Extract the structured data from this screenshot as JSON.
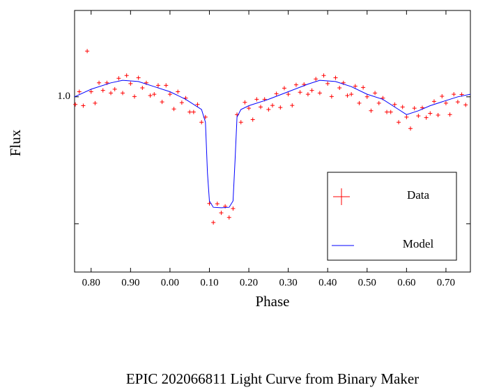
{
  "chart_data": {
    "type": "scatter",
    "caption": "EPIC 202066811 Light Curve from Binary Maker",
    "x_label": "Phase",
    "y_label": "Flux",
    "xlim": [
      0.758,
      1.762
    ],
    "ylim": [
      0.31,
      1.34
    ],
    "xticks": [
      {
        "value": 0.8,
        "label": "0.80"
      },
      {
        "value": 0.9,
        "label": "0.90"
      },
      {
        "value": 1.0,
        "label": "0.00"
      },
      {
        "value": 1.1,
        "label": "0.10"
      },
      {
        "value": 1.2,
        "label": "0.20"
      },
      {
        "value": 1.3,
        "label": "0.30"
      },
      {
        "value": 1.4,
        "label": "0.40"
      },
      {
        "value": 1.5,
        "label": "0.50"
      },
      {
        "value": 1.6,
        "label": "0.60"
      },
      {
        "value": 1.7,
        "label": "0.70"
      }
    ],
    "yticks": [
      {
        "value": 1.0,
        "label": "1.0"
      },
      {
        "value": 0.5,
        "label": null
      }
    ],
    "legend": "lower right",
    "series": [
      {
        "name": "Data",
        "color": "#ff0000",
        "style": "markers",
        "x": [
          0.76,
          0.77,
          0.78,
          0.79,
          0.8,
          0.81,
          0.82,
          0.83,
          0.84,
          0.85,
          0.86,
          0.87,
          0.88,
          0.89,
          0.9,
          0.91,
          0.92,
          0.93,
          0.94,
          0.95,
          0.96,
          0.97,
          0.98,
          0.99,
          1.0,
          1.01,
          1.02,
          1.03,
          1.04,
          1.05,
          1.06,
          1.07,
          1.08,
          1.09,
          1.1,
          1.11,
          1.12,
          1.13,
          1.14,
          1.15,
          1.16,
          1.17,
          1.18,
          1.19,
          1.2,
          1.21,
          1.22,
          1.23,
          1.24,
          1.25,
          1.26,
          1.27,
          1.28,
          1.29,
          1.3,
          1.31,
          1.32,
          1.33,
          1.34,
          1.35,
          1.36,
          1.37,
          1.38,
          1.39,
          1.4,
          1.41,
          1.42,
          1.43,
          1.44,
          1.45,
          1.46,
          1.47,
          1.48,
          1.49,
          1.5,
          1.51,
          1.52,
          1.53,
          1.54,
          1.55,
          1.56,
          1.57,
          1.58,
          1.59,
          1.6,
          1.61,
          1.62,
          1.63,
          1.64,
          1.65,
          1.66,
          1.67,
          1.68,
          1.69,
          1.7,
          1.71,
          1.72,
          1.73,
          1.74,
          1.75
        ],
        "values": [
          0.97,
          1.02,
          0.965,
          1.18,
          1.02,
          0.975,
          1.055,
          1.025,
          1.055,
          1.015,
          1.03,
          1.073,
          1.015,
          1.084,
          1.052,
          1.001,
          1.075,
          1.035,
          1.055,
          1.005,
          1.01,
          1.045,
          0.98,
          1.045,
          1.01,
          0.952,
          1.02,
          0.977,
          0.995,
          0.94,
          0.94,
          0.97,
          0.9,
          0.92,
          0.58,
          0.505,
          0.579,
          0.543,
          0.569,
          0.525,
          0.56,
          0.93,
          0.9,
          0.978,
          0.955,
          0.91,
          0.99,
          0.96,
          0.99,
          0.95,
          0.966,
          1.012,
          0.958,
          1.034,
          1.01,
          0.966,
          1.047,
          1.018,
          1.049,
          1.01,
          1.025,
          1.07,
          1.015,
          1.084,
          1.052,
          1.001,
          1.075,
          1.035,
          1.055,
          1.005,
          1.01,
          1.042,
          0.975,
          1.037,
          1.0,
          0.945,
          1.015,
          0.975,
          0.995,
          0.94,
          0.94,
          0.97,
          0.9,
          0.96,
          0.92,
          0.875,
          0.955,
          0.925,
          0.957,
          0.918,
          0.935,
          0.982,
          0.928,
          1.002,
          0.975,
          0.93,
          1.01,
          0.98,
          1.009,
          0.968
        ]
      },
      {
        "name": "Model",
        "color": "#0000ff",
        "style": "line",
        "x": [
          0.758,
          0.8,
          0.85,
          0.88,
          0.92,
          0.96,
          1.0,
          1.04,
          1.08,
          1.09,
          1.095,
          1.1,
          1.11,
          1.13,
          1.15,
          1.16,
          1.165,
          1.17,
          1.18,
          1.2,
          1.25,
          1.3,
          1.35,
          1.38,
          1.42,
          1.46,
          1.5,
          1.54,
          1.58,
          1.6,
          1.63,
          1.66,
          1.7,
          1.73,
          1.762
        ],
        "values": [
          1.0,
          1.03,
          1.055,
          1.065,
          1.06,
          1.04,
          1.02,
          0.99,
          0.95,
          0.9,
          0.7,
          0.59,
          0.565,
          0.563,
          0.565,
          0.59,
          0.75,
          0.92,
          0.95,
          0.965,
          0.99,
          1.02,
          1.05,
          1.065,
          1.06,
          1.04,
          1.01,
          0.99,
          0.95,
          0.93,
          0.945,
          0.965,
          0.985,
          1.0,
          1.01
        ]
      }
    ]
  }
}
